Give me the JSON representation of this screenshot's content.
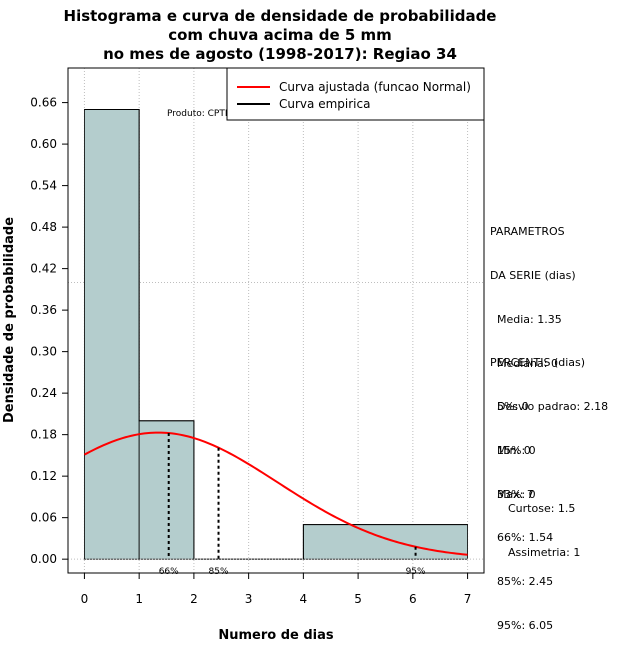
{
  "chart_data": {
    "type": "bar",
    "title": [
      "Histograma e curva de densidade de probabilidade",
      "com chuva acima de 5 mm",
      "no mes de agosto (1998-2017): Regiao 34"
    ],
    "xlabel": "Numero de dias",
    "ylabel": "Densidade de probabilidade",
    "xlim": [
      -0.3,
      7.3
    ],
    "ylim": [
      -0.02,
      0.71
    ],
    "x_ticks": [
      "0",
      "1",
      "2",
      "3",
      "4",
      "5",
      "6",
      "7"
    ],
    "y_ticks": [
      "0.00",
      "0.06",
      "0.12",
      "0.18",
      "0.24",
      "0.30",
      "0.36",
      "0.42",
      "0.48",
      "0.54",
      "0.60",
      "0.66"
    ],
    "histogram_bins": [
      {
        "x0": 0,
        "x1": 1,
        "density": 0.65
      },
      {
        "x0": 1,
        "x1": 2,
        "density": 0.2
      },
      {
        "x0": 2,
        "x1": 4,
        "density": 0.0
      },
      {
        "x0": 4,
        "x1": 7,
        "density": 0.05
      }
    ],
    "normal_fit": {
      "mean": 1.35,
      "sd": 2.18,
      "x_range": [
        0,
        7
      ]
    },
    "reference_line_y": 0.4,
    "percentile_lines": [
      {
        "label": "66%",
        "x": 1.54
      },
      {
        "label": "85%",
        "x": 2.45
      },
      {
        "label": "95%",
        "x": 6.05
      }
    ],
    "legend": [
      {
        "label": "Curva ajustada (funcao Normal)",
        "color": "#ff0000"
      },
      {
        "label": "Curva empirica",
        "color": "#000000"
      }
    ],
    "legend_position": "top-right",
    "credit": "Produto: CPTEC/INPE",
    "grid": true
  },
  "colors": {
    "bar_fill": "#b4cdcd",
    "fit_curve": "#ff0000",
    "grid": "#bebebe"
  },
  "side_panel": {
    "parametros": [
      "PARAMETROS",
      "DA SERIE (dias)",
      "  Media: 1.35",
      "  Mediana: 0",
      "  Desvio padrao: 2.18",
      "  Min: 0",
      "  Max: 7"
    ],
    "percentis": [
      "PERCENTIS (dias)",
      "  5%: 0",
      "  15%: 0",
      "  33%: 0",
      "  66%: 1.54",
      "  85%: 2.45",
      "  95%: 6.05"
    ],
    "shape": [
      "Curtose: 1.5",
      "Assimetria: 1"
    ]
  }
}
